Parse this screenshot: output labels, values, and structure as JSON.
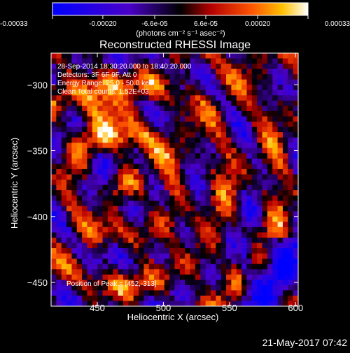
{
  "chart_data": {
    "type": "heatmap",
    "title": "Reconstructed RHESSI Image",
    "xlabel": "Heliocentric X (arcsec)",
    "ylabel": "Heliocentric Y (arcsec)",
    "xlim": [
      415,
      602
    ],
    "ylim": [
      -468,
      -276
    ],
    "x_ticks": [
      "450",
      "500",
      "550",
      "600"
    ],
    "y_ticks": [
      "-300",
      "-350",
      "-400",
      "-450"
    ],
    "x_tick_values": [
      450,
      500,
      550,
      600
    ],
    "y_tick_values": [
      -300,
      -350,
      -400,
      -450
    ],
    "colorbar": {
      "ticks": [
        "-0.00033",
        "-0.00020",
        "-6.6e-05",
        "6.6e-05",
        "0.00020",
        "0.00033"
      ],
      "tick_values": [
        -0.00033,
        -0.0002,
        -6.6e-05,
        6.6e-05,
        0.0002,
        0.00033
      ],
      "range": [
        -0.00033,
        0.00033
      ],
      "label": "(photons cm⁻² s⁻¹ asec⁻²)"
    },
    "annotations": [
      "28-Sep-2014 18:30:20.000 to 18:40:20.000",
      "Detectors: 3F 6F 9F, Att 0",
      "Energy Range: 25.0 - 50.0 keV",
      "Clean   Total counts: 1.52E+03"
    ],
    "peak_label": "Position of Peak = [452,-313]",
    "peak": [
      452,
      -313
    ]
  },
  "timestamp": "21-May-2017 07:42"
}
